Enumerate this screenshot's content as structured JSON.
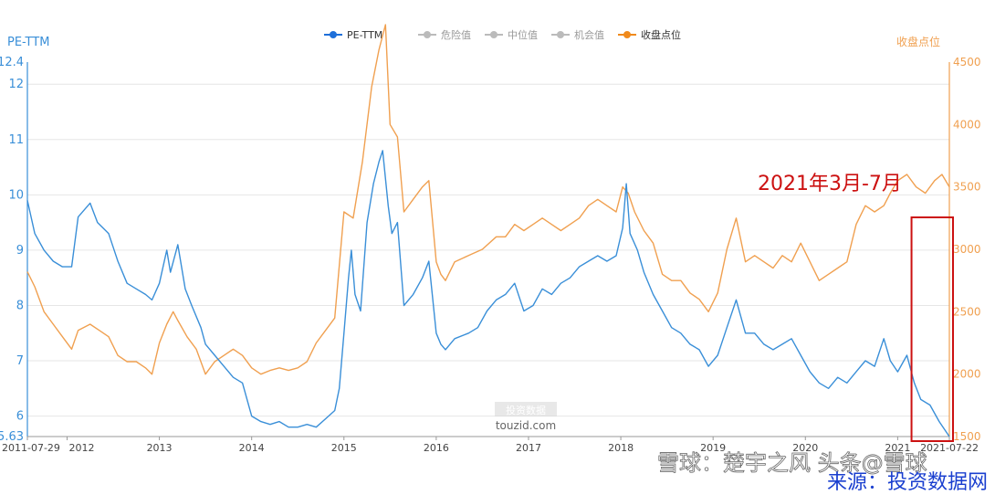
{
  "chart_data": {
    "type": "line",
    "y_left_label": "PE-TTM",
    "y_right_label": "收盘点位",
    "y_left_range": [
      5.63,
      12.4
    ],
    "y_right_range": [
      1500,
      4500
    ],
    "y_left_ticks": [
      "12.4",
      "12",
      "11",
      "10",
      "9",
      "8",
      "7",
      "6",
      "5.63"
    ],
    "y_right_ticks": [
      "4500",
      "4000",
      "3500",
      "3000",
      "2500",
      "2000",
      "1500"
    ],
    "x_range": [
      2011.57,
      2021.56
    ],
    "x_ticks": [
      {
        "label": "2011-07-29",
        "x": 2011.57
      },
      {
        "label": "2012",
        "x": 2012.0
      },
      {
        "label": "2013",
        "x": 2013.0
      },
      {
        "label": "2014",
        "x": 2014.0
      },
      {
        "label": "2015",
        "x": 2015.0
      },
      {
        "label": "2016",
        "x": 2016.0
      },
      {
        "label": "2017",
        "x": 2017.0
      },
      {
        "label": "2018",
        "x": 2018.0
      },
      {
        "label": "2019",
        "x": 2019.0
      },
      {
        "label": "2020",
        "x": 2020.0
      },
      {
        "label": "2021",
        "x": 2021.0
      },
      {
        "label": "2021-07-22",
        "x": 2021.56
      }
    ],
    "legend": [
      {
        "name": "PE-TTM",
        "color": "#1e6fd9",
        "active": true
      },
      {
        "name": "危险值",
        "color": "#bbbbbb",
        "active": false
      },
      {
        "name": "中位值",
        "color": "#bbbbbb",
        "active": false
      },
      {
        "name": "机会值",
        "color": "#bbbbbb",
        "active": false
      },
      {
        "name": "收盘点位",
        "color": "#f08a1c",
        "active": true
      }
    ],
    "series": [
      {
        "name": "PE-TTM",
        "axis": "left",
        "color": "#3a8fd8",
        "points": [
          [
            2011.57,
            9.9
          ],
          [
            2011.65,
            9.3
          ],
          [
            2011.75,
            9.0
          ],
          [
            2011.85,
            8.8
          ],
          [
            2011.95,
            8.7
          ],
          [
            2012.05,
            8.7
          ],
          [
            2012.12,
            9.6
          ],
          [
            2012.25,
            9.85
          ],
          [
            2012.33,
            9.5
          ],
          [
            2012.45,
            9.3
          ],
          [
            2012.55,
            8.8
          ],
          [
            2012.65,
            8.4
          ],
          [
            2012.75,
            8.3
          ],
          [
            2012.85,
            8.2
          ],
          [
            2012.92,
            8.1
          ],
          [
            2013.0,
            8.4
          ],
          [
            2013.08,
            9.0
          ],
          [
            2013.12,
            8.6
          ],
          [
            2013.2,
            9.1
          ],
          [
            2013.28,
            8.3
          ],
          [
            2013.35,
            8.0
          ],
          [
            2013.45,
            7.6
          ],
          [
            2013.5,
            7.3
          ],
          [
            2013.6,
            7.1
          ],
          [
            2013.7,
            6.9
          ],
          [
            2013.8,
            6.7
          ],
          [
            2013.9,
            6.6
          ],
          [
            2014.0,
            6.0
          ],
          [
            2014.1,
            5.9
          ],
          [
            2014.2,
            5.85
          ],
          [
            2014.3,
            5.9
          ],
          [
            2014.4,
            5.8
          ],
          [
            2014.5,
            5.8
          ],
          [
            2014.6,
            5.85
          ],
          [
            2014.7,
            5.8
          ],
          [
            2014.8,
            5.95
          ],
          [
            2014.9,
            6.1
          ],
          [
            2014.95,
            6.5
          ],
          [
            2015.0,
            7.5
          ],
          [
            2015.05,
            8.5
          ],
          [
            2015.08,
            9.0
          ],
          [
            2015.12,
            8.2
          ],
          [
            2015.18,
            7.9
          ],
          [
            2015.25,
            9.5
          ],
          [
            2015.32,
            10.2
          ],
          [
            2015.38,
            10.6
          ],
          [
            2015.42,
            10.8
          ],
          [
            2015.48,
            9.8
          ],
          [
            2015.52,
            9.3
          ],
          [
            2015.58,
            9.5
          ],
          [
            2015.65,
            8.0
          ],
          [
            2015.75,
            8.2
          ],
          [
            2015.85,
            8.5
          ],
          [
            2015.92,
            8.8
          ],
          [
            2016.0,
            7.5
          ],
          [
            2016.05,
            7.3
          ],
          [
            2016.1,
            7.2
          ],
          [
            2016.2,
            7.4
          ],
          [
            2016.35,
            7.5
          ],
          [
            2016.45,
            7.6
          ],
          [
            2016.55,
            7.9
          ],
          [
            2016.65,
            8.1
          ],
          [
            2016.75,
            8.2
          ],
          [
            2016.85,
            8.4
          ],
          [
            2016.95,
            7.9
          ],
          [
            2017.05,
            8.0
          ],
          [
            2017.15,
            8.3
          ],
          [
            2017.25,
            8.2
          ],
          [
            2017.35,
            8.4
          ],
          [
            2017.45,
            8.5
          ],
          [
            2017.55,
            8.7
          ],
          [
            2017.65,
            8.8
          ],
          [
            2017.75,
            8.9
          ],
          [
            2017.85,
            8.8
          ],
          [
            2017.95,
            8.9
          ],
          [
            2018.02,
            9.4
          ],
          [
            2018.06,
            10.2
          ],
          [
            2018.1,
            9.3
          ],
          [
            2018.18,
            9.0
          ],
          [
            2018.25,
            8.6
          ],
          [
            2018.35,
            8.2
          ],
          [
            2018.45,
            7.9
          ],
          [
            2018.55,
            7.6
          ],
          [
            2018.65,
            7.5
          ],
          [
            2018.75,
            7.3
          ],
          [
            2018.85,
            7.2
          ],
          [
            2018.95,
            6.9
          ],
          [
            2019.05,
            7.1
          ],
          [
            2019.15,
            7.6
          ],
          [
            2019.25,
            8.1
          ],
          [
            2019.35,
            7.5
          ],
          [
            2019.45,
            7.5
          ],
          [
            2019.55,
            7.3
          ],
          [
            2019.65,
            7.2
          ],
          [
            2019.75,
            7.3
          ],
          [
            2019.85,
            7.4
          ],
          [
            2019.95,
            7.1
          ],
          [
            2020.05,
            6.8
          ],
          [
            2020.15,
            6.6
          ],
          [
            2020.25,
            6.5
          ],
          [
            2020.35,
            6.7
          ],
          [
            2020.45,
            6.6
          ],
          [
            2020.55,
            6.8
          ],
          [
            2020.65,
            7.0
          ],
          [
            2020.75,
            6.9
          ],
          [
            2020.85,
            7.4
          ],
          [
            2020.92,
            7.0
          ],
          [
            2021.0,
            6.8
          ],
          [
            2021.1,
            7.1
          ],
          [
            2021.18,
            6.6
          ],
          [
            2021.25,
            6.3
          ],
          [
            2021.35,
            6.2
          ],
          [
            2021.45,
            5.9
          ],
          [
            2021.56,
            5.63
          ]
        ]
      },
      {
        "name": "收盘点位",
        "axis": "right",
        "color": "#f0a050",
        "points": [
          [
            2011.57,
            2820
          ],
          [
            2011.65,
            2700
          ],
          [
            2011.75,
            2500
          ],
          [
            2011.85,
            2400
          ],
          [
            2011.95,
            2300
          ],
          [
            2012.05,
            2200
          ],
          [
            2012.12,
            2350
          ],
          [
            2012.25,
            2400
          ],
          [
            2012.35,
            2350
          ],
          [
            2012.45,
            2300
          ],
          [
            2012.55,
            2150
          ],
          [
            2012.65,
            2100
          ],
          [
            2012.75,
            2100
          ],
          [
            2012.85,
            2050
          ],
          [
            2012.92,
            2000
          ],
          [
            2013.0,
            2250
          ],
          [
            2013.08,
            2400
          ],
          [
            2013.15,
            2500
          ],
          [
            2013.2,
            2430
          ],
          [
            2013.3,
            2300
          ],
          [
            2013.4,
            2200
          ],
          [
            2013.5,
            2000
          ],
          [
            2013.6,
            2100
          ],
          [
            2013.7,
            2150
          ],
          [
            2013.8,
            2200
          ],
          [
            2013.9,
            2150
          ],
          [
            2014.0,
            2050
          ],
          [
            2014.1,
            2000
          ],
          [
            2014.2,
            2030
          ],
          [
            2014.3,
            2050
          ],
          [
            2014.4,
            2030
          ],
          [
            2014.5,
            2050
          ],
          [
            2014.6,
            2100
          ],
          [
            2014.7,
            2250
          ],
          [
            2014.8,
            2350
          ],
          [
            2014.9,
            2450
          ],
          [
            2015.0,
            3300
          ],
          [
            2015.1,
            3250
          ],
          [
            2015.2,
            3700
          ],
          [
            2015.3,
            4300
          ],
          [
            2015.38,
            4600
          ],
          [
            2015.45,
            4800
          ],
          [
            2015.5,
            4000
          ],
          [
            2015.58,
            3900
          ],
          [
            2015.65,
            3300
          ],
          [
            2015.75,
            3400
          ],
          [
            2015.85,
            3500
          ],
          [
            2015.92,
            3550
          ],
          [
            2016.0,
            2900
          ],
          [
            2016.05,
            2800
          ],
          [
            2016.1,
            2750
          ],
          [
            2016.2,
            2900
          ],
          [
            2016.35,
            2950
          ],
          [
            2016.5,
            3000
          ],
          [
            2016.65,
            3100
          ],
          [
            2016.75,
            3100
          ],
          [
            2016.85,
            3200
          ],
          [
            2016.95,
            3150
          ],
          [
            2017.05,
            3200
          ],
          [
            2017.15,
            3250
          ],
          [
            2017.25,
            3200
          ],
          [
            2017.35,
            3150
          ],
          [
            2017.45,
            3200
          ],
          [
            2017.55,
            3250
          ],
          [
            2017.65,
            3350
          ],
          [
            2017.75,
            3400
          ],
          [
            2017.85,
            3350
          ],
          [
            2017.95,
            3300
          ],
          [
            2018.02,
            3500
          ],
          [
            2018.08,
            3450
          ],
          [
            2018.15,
            3300
          ],
          [
            2018.25,
            3150
          ],
          [
            2018.35,
            3050
          ],
          [
            2018.45,
            2800
          ],
          [
            2018.55,
            2750
          ],
          [
            2018.65,
            2750
          ],
          [
            2018.75,
            2650
          ],
          [
            2018.85,
            2600
          ],
          [
            2018.95,
            2500
          ],
          [
            2019.05,
            2650
          ],
          [
            2019.15,
            3000
          ],
          [
            2019.25,
            3250
          ],
          [
            2019.35,
            2900
          ],
          [
            2019.45,
            2950
          ],
          [
            2019.55,
            2900
          ],
          [
            2019.65,
            2850
          ],
          [
            2019.75,
            2950
          ],
          [
            2019.85,
            2900
          ],
          [
            2019.95,
            3050
          ],
          [
            2020.05,
            2900
          ],
          [
            2020.15,
            2750
          ],
          [
            2020.25,
            2800
          ],
          [
            2020.35,
            2850
          ],
          [
            2020.45,
            2900
          ],
          [
            2020.55,
            3200
          ],
          [
            2020.65,
            3350
          ],
          [
            2020.75,
            3300
          ],
          [
            2020.85,
            3350
          ],
          [
            2020.92,
            3450
          ],
          [
            2021.0,
            3550
          ],
          [
            2021.1,
            3600
          ],
          [
            2021.2,
            3500
          ],
          [
            2021.3,
            3450
          ],
          [
            2021.4,
            3550
          ],
          [
            2021.48,
            3600
          ],
          [
            2021.56,
            3500
          ]
        ]
      }
    ],
    "annotation": {
      "text": "2021年3月-7月",
      "box_x": [
        2021.15,
        2021.56
      ],
      "color": "#cc1111"
    },
    "watermark_center": {
      "line1": "投资数据",
      "line2": "touzid.com"
    },
    "watermark_bottom": "雪球：楚宇之风 头条@雪球",
    "source_label": "来源：投资数据网"
  }
}
